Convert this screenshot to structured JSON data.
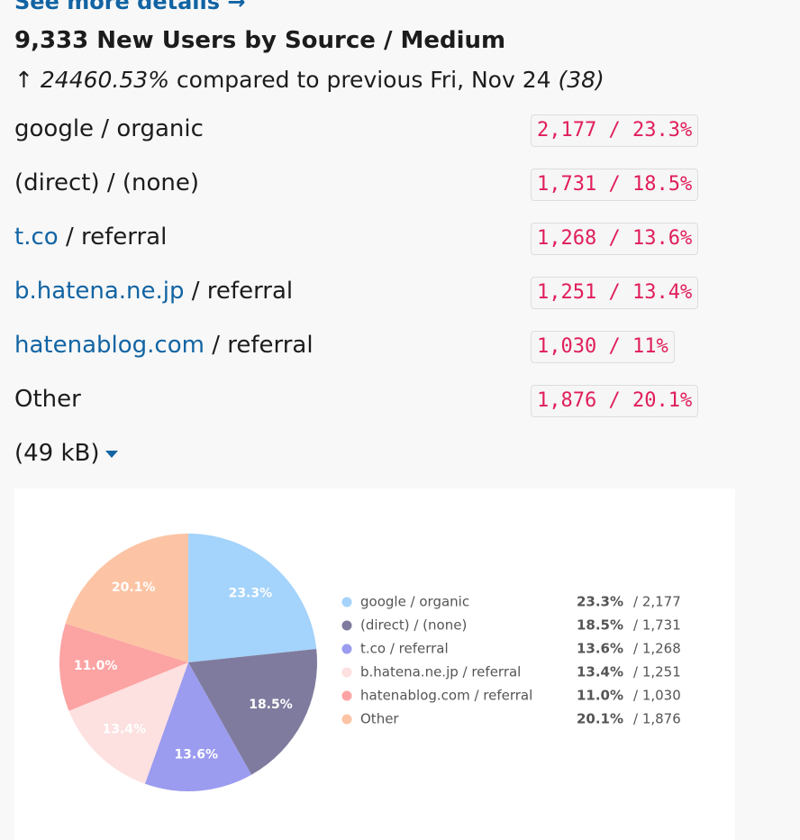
{
  "header": {
    "link": "See more details →",
    "title": "9,333 New Users by Source / Medium",
    "arrow": "↑",
    "change": "24460.53%",
    "comparison": "compared to previous Fri, Nov 24",
    "previous": "(38)"
  },
  "rows": [
    {
      "text": "google / organic",
      "badge": "2,177 / 23.3%"
    },
    {
      "text": "(direct) / (none)",
      "badge": "1,731 / 18.5%"
    },
    {
      "link": "t.co",
      "text": "/ referral",
      "badge": "1,268 / 13.6%"
    },
    {
      "link": "b.hatena.ne.jp",
      "text": "/ referral",
      "badge": "1,251 / 13.4%"
    },
    {
      "link": "hatenablog.com",
      "text": "/ referral",
      "badge": "1,030 / 11%"
    },
    {
      "text": "Other",
      "badge": "1,876 / 20.1%"
    }
  ],
  "attachment": "(49 kB)",
  "chart_data": {
    "type": "pie",
    "categories": [
      "google / organic",
      "(direct) / (none)",
      "t.co / referral",
      "b.hatena.ne.jp / referral",
      "hatenablog.com / referral",
      "Other"
    ],
    "values": [
      23.3,
      18.5,
      13.6,
      13.4,
      11.0,
      20.1
    ],
    "value_labels": [
      "23.3%",
      "18.5%",
      "13.6%",
      "13.4%",
      "11.0%",
      "20.1%"
    ],
    "legend_counts": [
      "/ 2,177",
      "/ 1,731",
      "/ 1,268",
      "/ 1,251",
      "/ 1,030",
      "/ 1,876"
    ],
    "colors": [
      "#a4d3fb",
      "#7f7b9e",
      "#9b9bef",
      "#fde0e0",
      "#fca3a3",
      "#fcc4a4"
    ]
  }
}
